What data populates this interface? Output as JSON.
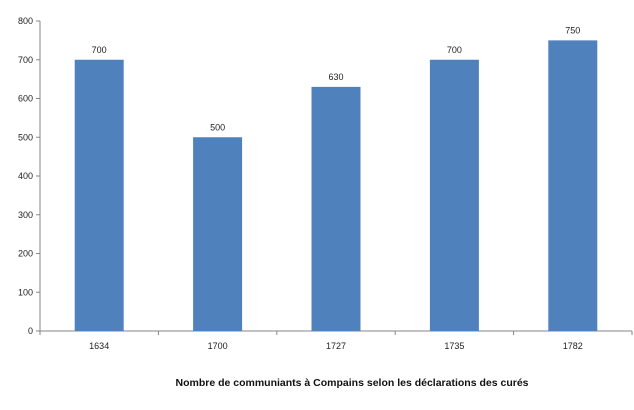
{
  "chart_data": {
    "type": "bar",
    "title": "Nombre de communiants à Compains selon les déclarations des curés",
    "xlabel": "",
    "ylabel": "",
    "categories": [
      "1634",
      "1700",
      "1727",
      "1735",
      "1782"
    ],
    "values": [
      700,
      500,
      630,
      700,
      750
    ],
    "data_labels": [
      "700",
      "500",
      "630",
      "700",
      "750"
    ],
    "ylim": [
      0,
      800
    ],
    "yticks": [
      "0",
      "100",
      "200",
      "300",
      "400",
      "500",
      "600",
      "700",
      "800"
    ],
    "grid": false,
    "legend": "none",
    "bar_color": "#4f81bd",
    "title_position": "bottom"
  }
}
